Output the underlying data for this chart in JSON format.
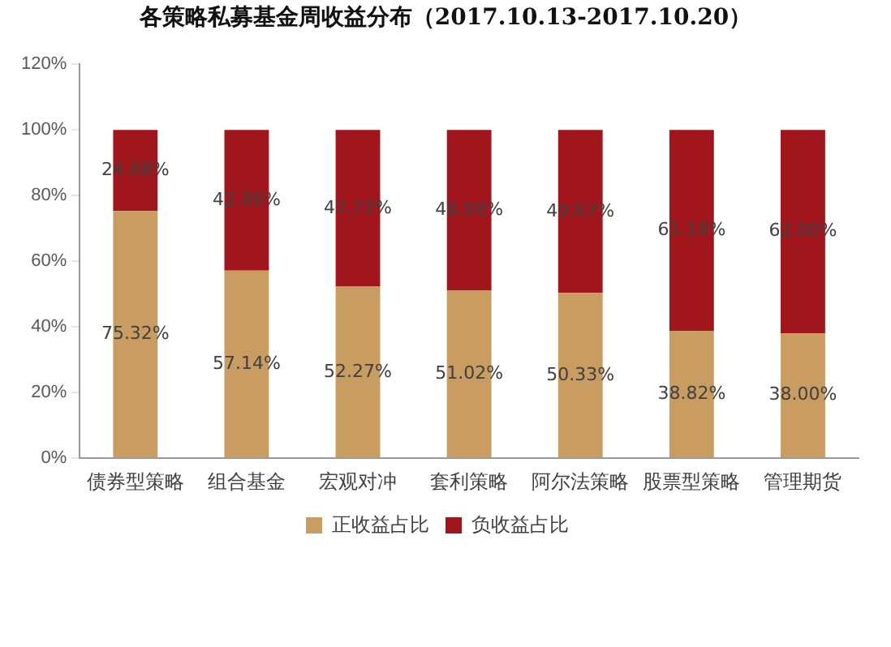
{
  "chart_data": {
    "type": "bar",
    "title": "各策略私募基金周收益分布（2017.10.13-2017.10.20）",
    "categories": [
      "债券型策略",
      "组合基金",
      "宏观对冲",
      "套利策略",
      "阿尔法策略",
      "股票型策略",
      "管理期货"
    ],
    "series": [
      {
        "name": "正收益占比",
        "color": "#c99c62",
        "values": [
          75.32,
          57.14,
          52.27,
          51.02,
          50.33,
          38.82,
          38.0
        ],
        "value_labels": [
          "75.32%",
          "57.14%",
          "52.27%",
          "51.02%",
          "50.33%",
          "38.82%",
          "38.00%"
        ]
      },
      {
        "name": "负收益占比",
        "color": "#a0161c",
        "values": [
          24.68,
          42.86,
          47.73,
          48.98,
          49.67,
          61.18,
          62.0
        ],
        "value_labels": [
          "24.68%",
          "42.86%",
          "47.73%",
          "48.98%",
          "49.67%",
          "61.18%",
          "62.00%"
        ]
      }
    ],
    "stacked": true,
    "ylim": [
      0,
      120
    ],
    "yticks": [
      {
        "value": 0,
        "label": "0%"
      },
      {
        "value": 20,
        "label": "20%"
      },
      {
        "value": 40,
        "label": "40%"
      },
      {
        "value": 60,
        "label": "60%"
      },
      {
        "value": 80,
        "label": "80%"
      },
      {
        "value": 100,
        "label": "100%"
      },
      {
        "value": 120,
        "label": "120%"
      }
    ],
    "grid": false,
    "legend": "bottom"
  }
}
